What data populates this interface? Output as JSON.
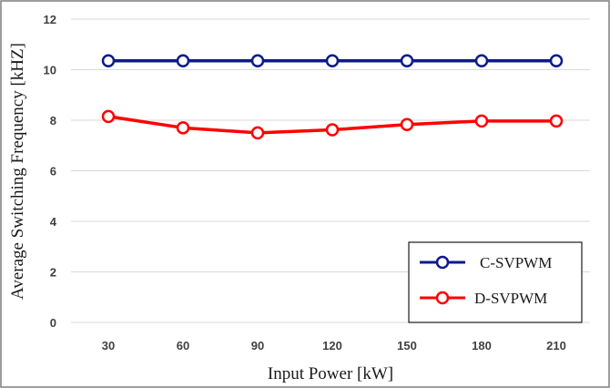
{
  "chart_data": {
    "type": "line",
    "xlabel": "Input Power [kW]",
    "ylabel": "Average Switching Frequency [kHZ]",
    "categories": [
      "30",
      "60",
      "90",
      "120",
      "150",
      "180",
      "210"
    ],
    "yticks": [
      "0",
      "2",
      "4",
      "6",
      "8",
      "10",
      "12"
    ],
    "ylim": [
      0,
      12
    ],
    "grid": true,
    "legend_position": "bottom-right",
    "series": [
      {
        "name": "C-SVPWM",
        "color": "#0d1a8c",
        "marker": "open-circle",
        "values": [
          10.35,
          10.35,
          10.35,
          10.35,
          10.35,
          10.35,
          10.35
        ]
      },
      {
        "name": "D-SVPWM",
        "color": "#ff0000",
        "marker": "open-circle",
        "values": [
          8.15,
          7.7,
          7.5,
          7.62,
          7.83,
          7.97,
          7.97
        ]
      }
    ]
  }
}
